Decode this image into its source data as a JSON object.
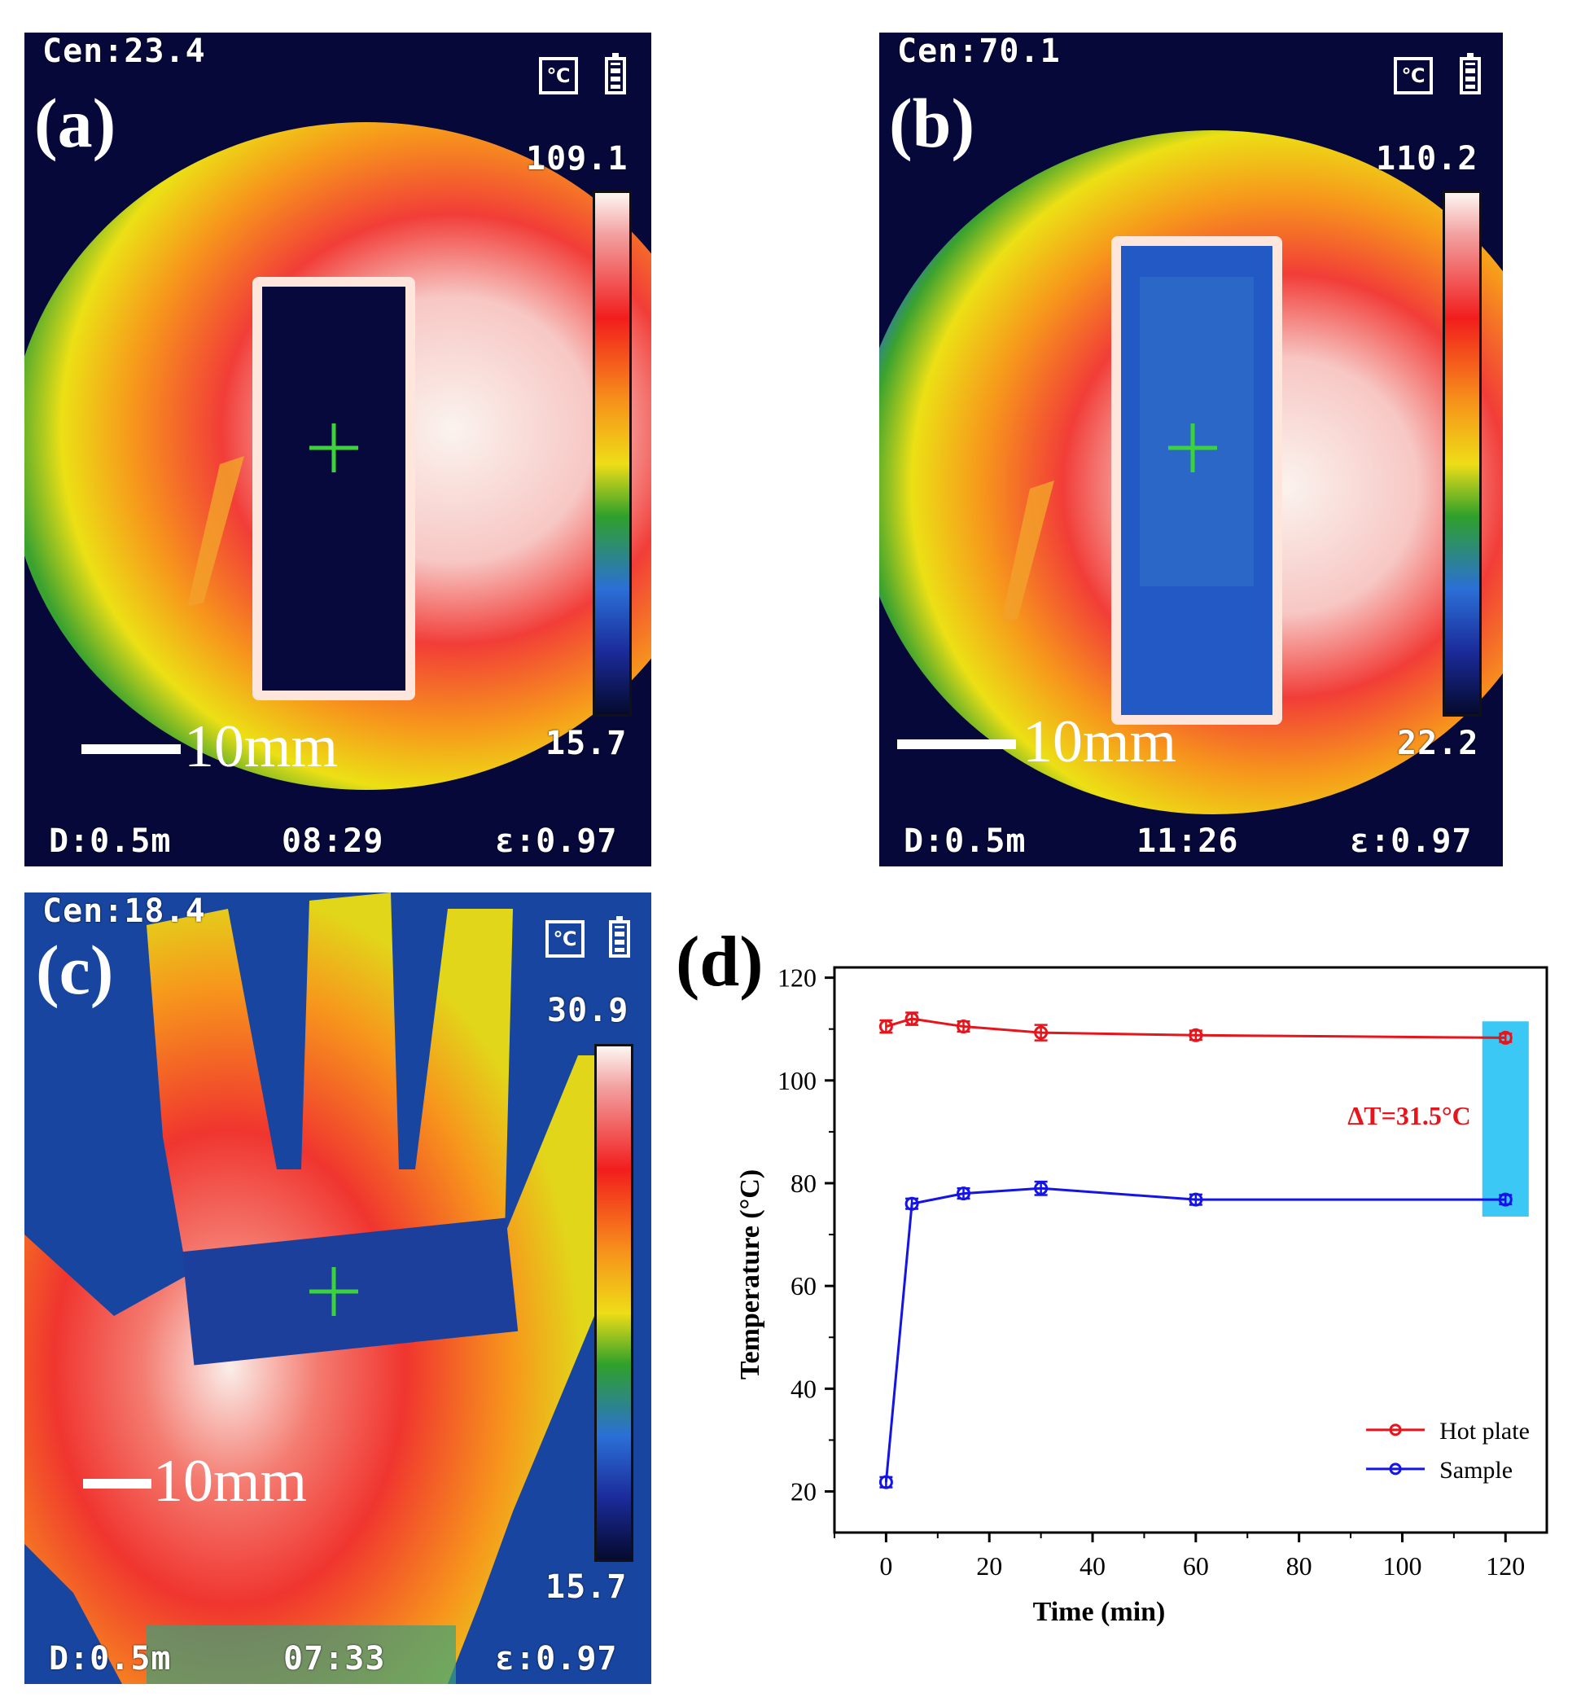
{
  "panels": [
    {
      "id": "a",
      "label": "(a)",
      "cen": "Cen:23.4",
      "unit_icon": "℃",
      "max": "109.1",
      "min": "15.7",
      "scale": "10mm",
      "distance": "D:0.5m",
      "time": "08:29",
      "emissivity": "ε:0.97",
      "icons": [
        "celsius-icon",
        "battery-icon",
        "crosshair-icon"
      ]
    },
    {
      "id": "b",
      "label": "(b)",
      "cen": "Cen:70.1",
      "unit_icon": "℃",
      "max": "110.2",
      "min": "22.2",
      "scale": "10mm",
      "distance": "D:0.5m",
      "time": "11:26",
      "emissivity": "ε:0.97",
      "icons": [
        "celsius-icon",
        "battery-icon",
        "crosshair-icon"
      ]
    },
    {
      "id": "c",
      "label": "(c)",
      "cen": "Cen:18.4",
      "unit_icon": "℃",
      "max": "30.9",
      "min": "15.7",
      "scale": "10mm",
      "distance": "D:0.5m",
      "time": "07:33",
      "emissivity": "ε:0.97",
      "icons": [
        "celsius-icon",
        "battery-icon",
        "crosshair-icon"
      ]
    }
  ],
  "colors": {
    "hotplate": "#e8141b",
    "sample": "#1414e8",
    "highlight": "#3cc8f5",
    "annotation": "#e8141b"
  },
  "chart_data": {
    "type": "line",
    "label": "(d)",
    "xlabel": "Time (min)",
    "ylabel": "Temperature (°C)",
    "xlim": [
      -10,
      128
    ],
    "ylim": [
      12,
      122
    ],
    "xticks": [
      0,
      20,
      40,
      60,
      80,
      100,
      120
    ],
    "yticks": [
      20,
      40,
      60,
      80,
      100,
      120
    ],
    "grid": false,
    "legend_position": "bottom-right",
    "annotation": "ΔT=31.5°C",
    "highlight_range_x": [
      115.5,
      124.5
    ],
    "highlight_range_y": [
      73.5,
      111.5
    ],
    "series": [
      {
        "name": "Hot plate",
        "color": "#e8141b",
        "x": [
          0,
          5,
          15,
          30,
          60,
          120
        ],
        "y": [
          110.5,
          112.0,
          110.5,
          109.3,
          108.8,
          108.3
        ],
        "err": [
          1.2,
          1.2,
          1.0,
          1.5,
          0.9,
          0.8
        ]
      },
      {
        "name": "Sample",
        "color": "#1414e8",
        "x": [
          0,
          5,
          15,
          30,
          60,
          120
        ],
        "y": [
          21.8,
          76.0,
          78.0,
          79.0,
          76.8,
          76.8
        ],
        "err": [
          1.0,
          1.0,
          1.0,
          1.3,
          1.0,
          0.9
        ]
      }
    ]
  }
}
